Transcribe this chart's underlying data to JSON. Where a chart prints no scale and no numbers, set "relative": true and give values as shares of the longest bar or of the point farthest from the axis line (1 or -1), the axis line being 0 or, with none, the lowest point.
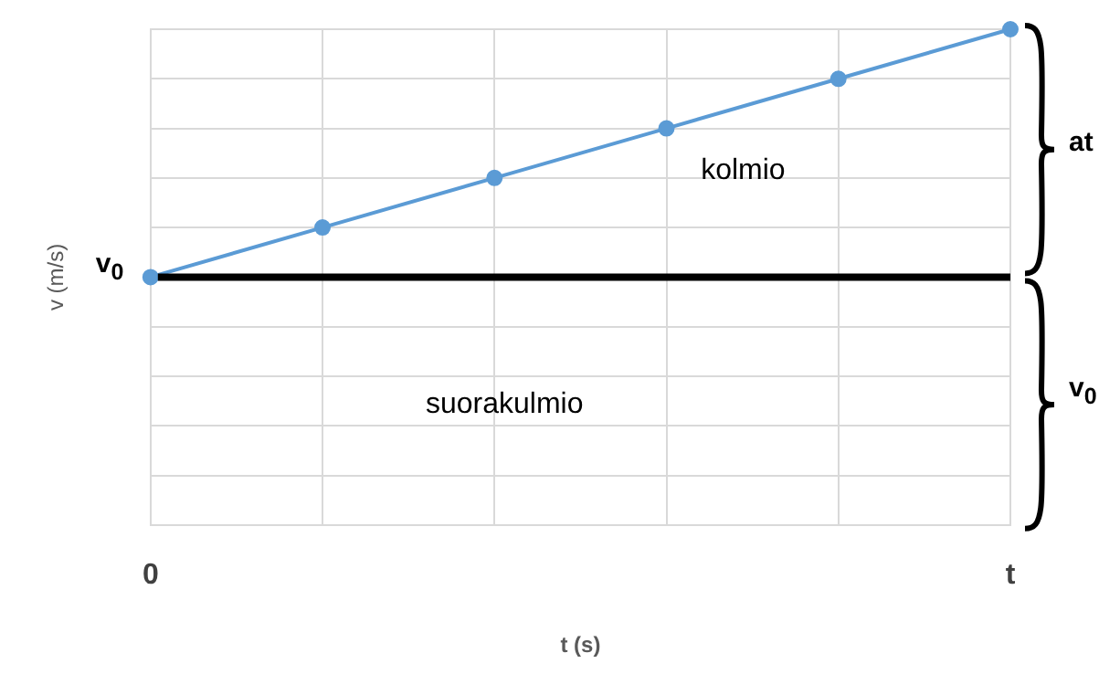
{
  "chart_data": {
    "type": "line",
    "relative": true,
    "xlabel": "t (s)",
    "ylabel": "v (m/s)",
    "categories": [
      "0",
      null,
      null,
      null,
      null,
      "t"
    ],
    "series": [
      {
        "color": "#5b9bd5",
        "values": [
          0.5,
          0.6,
          0.7,
          0.8,
          0.9,
          1.0
        ]
      }
    ],
    "ref_lines": [
      {
        "axis": "y",
        "value": 0.5,
        "color": "#000000"
      }
    ],
    "annotations": [
      "v$_{0}$",
      "kolmio",
      "suorakulmio",
      "at",
      "v$_{0}$"
    ],
    "grid": true,
    "marker": "circle",
    "line_style": "solid",
    "legend": false
  }
}
